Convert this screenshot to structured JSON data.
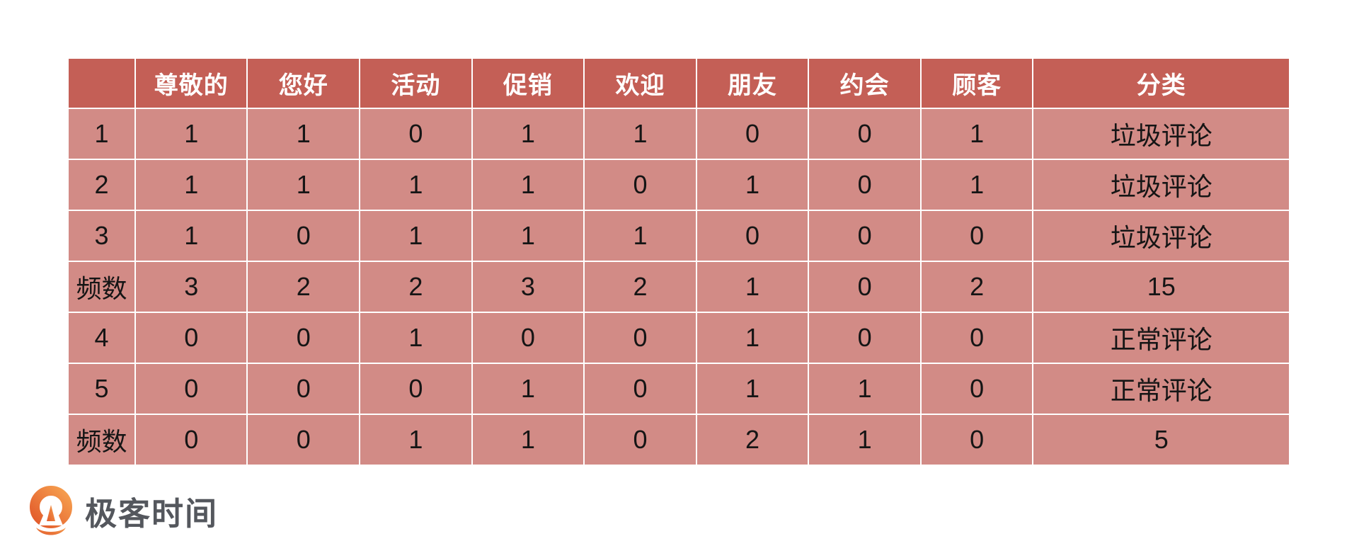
{
  "chart_data": {
    "type": "table",
    "title": "",
    "columns": [
      "",
      "尊敬的",
      "您好",
      "活动",
      "促销",
      "欢迎",
      "朋友",
      "约会",
      "顾客",
      "分类"
    ],
    "rows": [
      {
        "label": "1",
        "values": [
          "1",
          "1",
          "0",
          "1",
          "1",
          "0",
          "0",
          "1"
        ],
        "category": "垃圾评论"
      },
      {
        "label": "2",
        "values": [
          "1",
          "1",
          "1",
          "1",
          "0",
          "1",
          "0",
          "1"
        ],
        "category": "垃圾评论"
      },
      {
        "label": "3",
        "values": [
          "1",
          "0",
          "1",
          "1",
          "1",
          "0",
          "0",
          "0"
        ],
        "category": "垃圾评论"
      },
      {
        "label": "频数",
        "values": [
          "3",
          "2",
          "2",
          "3",
          "2",
          "1",
          "0",
          "2"
        ],
        "category": "15"
      },
      {
        "label": "4",
        "values": [
          "0",
          "0",
          "1",
          "0",
          "0",
          "1",
          "0",
          "0"
        ],
        "category": "正常评论"
      },
      {
        "label": "5",
        "values": [
          "0",
          "0",
          "0",
          "1",
          "0",
          "1",
          "1",
          "0"
        ],
        "category": "正常评论"
      },
      {
        "label": "频数",
        "values": [
          "0",
          "0",
          "1",
          "1",
          "0",
          "2",
          "1",
          "0"
        ],
        "category": "5"
      }
    ]
  },
  "branding": {
    "logo_text": "极客时间"
  },
  "colors": {
    "header_bg": "#c45f56",
    "body_bg": "#d28b86",
    "header_text": "#ffffff",
    "body_text": "#151515",
    "grid_line": "rgba(255,255,255,0.5)",
    "logo_orange_light": "#f6a04f",
    "logo_orange_dark": "#e25a2b",
    "logo_text_color": "#54575d",
    "page_bg": "#ffffff"
  }
}
